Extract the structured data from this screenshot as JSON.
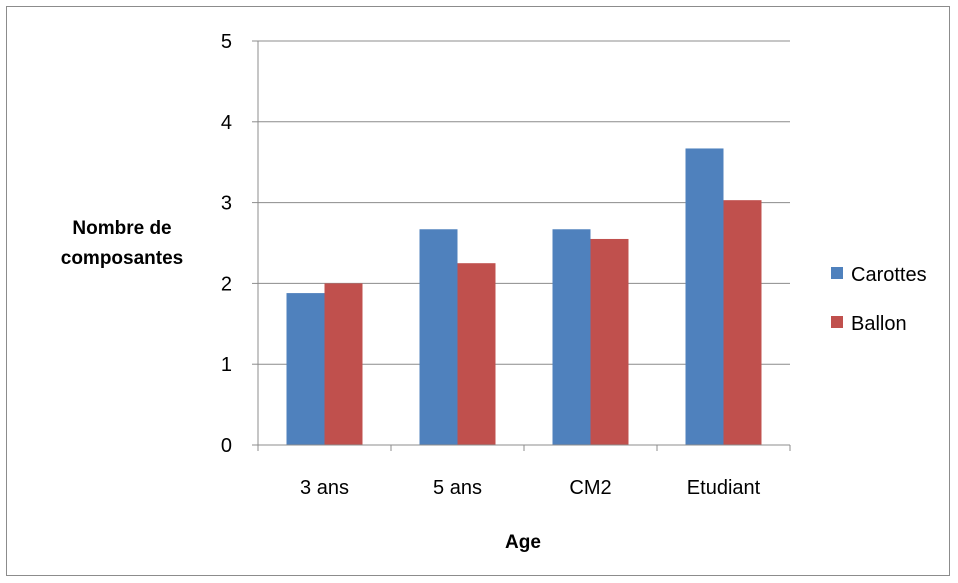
{
  "chart_data": {
    "type": "bar",
    "categories": [
      "3 ans",
      "5 ans",
      "CM2",
      "Etudiant"
    ],
    "series": [
      {
        "name": "Carottes",
        "color": "#4f81bd",
        "values": [
          1.88,
          2.67,
          2.67,
          3.67
        ]
      },
      {
        "name": "Ballon",
        "color": "#c0504d",
        "values": [
          2.0,
          2.25,
          2.55,
          3.03
        ]
      }
    ],
    "title": "",
    "xlabel": "Age",
    "ylabel": [
      "Nombre de",
      "composantes"
    ],
    "ylim": [
      0,
      5
    ],
    "yticks": [
      0,
      1,
      2,
      3,
      4,
      5
    ],
    "grid": true,
    "legend": "right"
  }
}
